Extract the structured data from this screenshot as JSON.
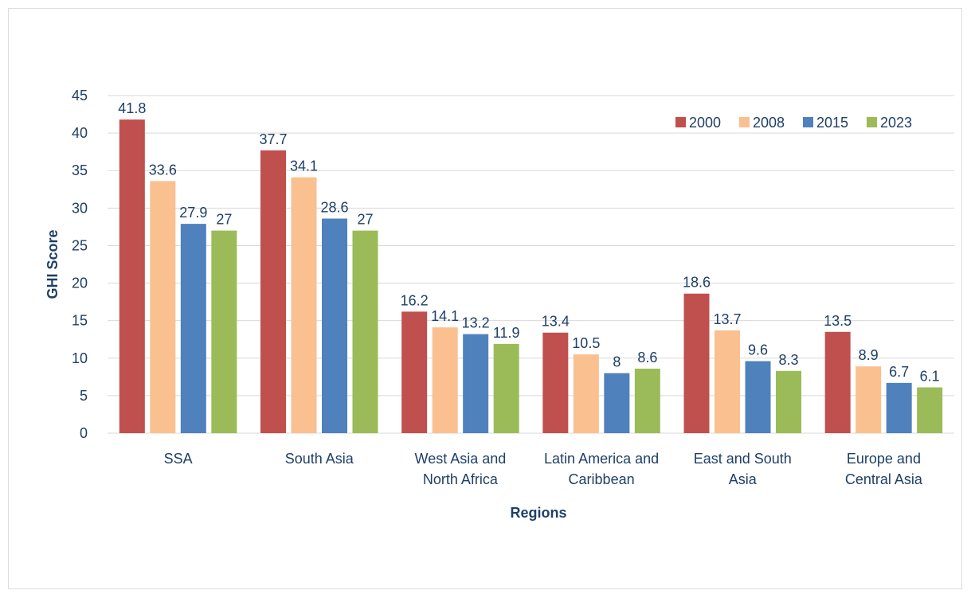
{
  "chart_data": {
    "type": "bar",
    "title": "",
    "xlabel": "Regions",
    "ylabel": "GHI Score",
    "ylim": [
      0,
      45
    ],
    "yticks": [
      0,
      5,
      10,
      15,
      20,
      25,
      30,
      35,
      40,
      45
    ],
    "grid": "horizontal",
    "legend_position": "top-right",
    "categories": [
      [
        "SSA"
      ],
      [
        "South Asia"
      ],
      [
        "West Asia and",
        "North Africa"
      ],
      [
        "Latin America and",
        "Caribbean"
      ],
      [
        "East and South",
        "Asia"
      ],
      [
        "Europe and",
        "Central Asia"
      ]
    ],
    "series": [
      {
        "name": "2000",
        "color": "#c0504d",
        "values": [
          41.8,
          37.7,
          16.2,
          13.4,
          18.6,
          13.5
        ]
      },
      {
        "name": "2008",
        "color": "#fac090",
        "values": [
          33.6,
          34.1,
          14.1,
          10.5,
          13.7,
          8.9
        ]
      },
      {
        "name": "2015",
        "color": "#4f81bd",
        "values": [
          27.9,
          28.6,
          13.2,
          8,
          9.6,
          6.7
        ]
      },
      {
        "name": "2023",
        "color": "#9bbb59",
        "values": [
          27,
          27,
          11.9,
          8.6,
          8.3,
          6.1
        ]
      }
    ]
  }
}
